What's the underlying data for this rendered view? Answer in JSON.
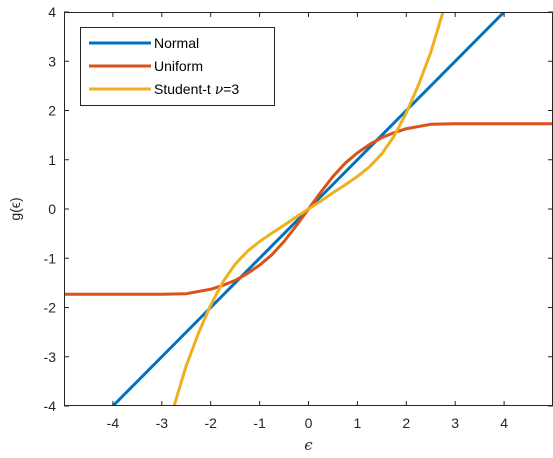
{
  "chart_data": {
    "type": "line",
    "xlabel": "ϵ",
    "ylabel": "g(ϵ)",
    "xlim": [
      -5,
      5
    ],
    "ylim": [
      -4,
      4
    ],
    "xticks": [
      -4,
      -3,
      -2,
      -1,
      0,
      1,
      2,
      3,
      4
    ],
    "yticks": [
      -4,
      -3,
      -2,
      -1,
      0,
      1,
      2,
      3,
      4
    ],
    "grid": false,
    "legend_position": "top-left",
    "series": [
      {
        "name": "Normal",
        "color": "#0072BD",
        "x": [
          -5,
          -4,
          -3,
          -2,
          -1,
          0,
          1,
          2,
          3,
          4,
          5
        ],
        "y": [
          -5,
          -4,
          -3,
          -2,
          -1,
          0,
          1,
          2,
          3,
          4,
          5
        ]
      },
      {
        "name": "Uniform",
        "color": "#D95319",
        "x": [
          -5,
          -4,
          -3,
          -2.5,
          -2,
          -1.75,
          -1.5,
          -1.25,
          -1,
          -0.75,
          -0.5,
          -0.25,
          0,
          0.25,
          0.5,
          0.75,
          1,
          1.25,
          1.5,
          1.75,
          2,
          2.5,
          3,
          4,
          5
        ],
        "y": [
          -1.732,
          -1.732,
          -1.732,
          -1.72,
          -1.63,
          -1.55,
          -1.45,
          -1.31,
          -1.14,
          -0.93,
          -0.66,
          -0.34,
          0,
          0.34,
          0.66,
          0.93,
          1.14,
          1.31,
          1.45,
          1.55,
          1.63,
          1.72,
          1.732,
          1.732,
          1.732
        ]
      },
      {
        "name": "Student-t ν=3",
        "color": "#EDB120",
        "x": [
          -2.75,
          -2.5,
          -2.25,
          -2,
          -1.75,
          -1.5,
          -1.25,
          -1,
          -0.75,
          -0.5,
          -0.25,
          0,
          0.25,
          0.5,
          0.75,
          1,
          1.25,
          1.5,
          1.75,
          2,
          2.25,
          2.5,
          2.75
        ],
        "y": [
          -4,
          -3.18,
          -2.52,
          -1.95,
          -1.48,
          -1.12,
          -0.86,
          -0.66,
          -0.49,
          -0.33,
          -0.16,
          0,
          0.16,
          0.33,
          0.49,
          0.66,
          0.86,
          1.12,
          1.48,
          1.95,
          2.52,
          3.18,
          4
        ]
      }
    ]
  },
  "legend": {
    "items": [
      {
        "label": "Normal",
        "color": "#0072BD"
      },
      {
        "label": "Uniform",
        "color": "#D95319"
      },
      {
        "label_prefix": "Student-t ",
        "label_nu": "ν",
        "label_suffix": "=3",
        "color": "#EDB120"
      }
    ]
  }
}
